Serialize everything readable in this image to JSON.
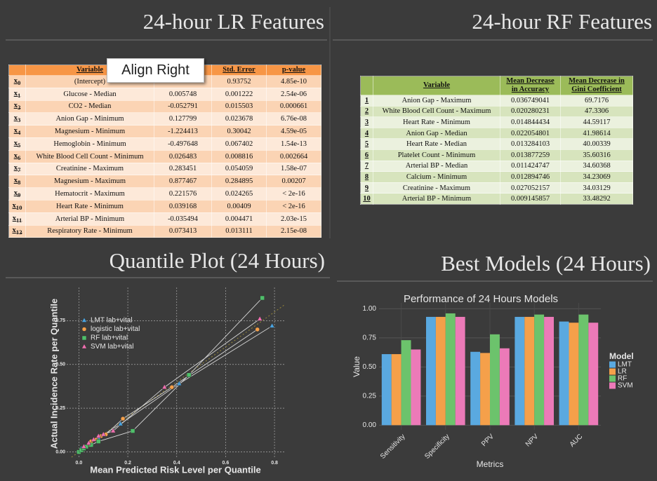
{
  "slide": {
    "titles": {
      "lr": "24-hour LR Features",
      "rf": "24-hour RF Features",
      "quantile": "Quantile Plot (24 Hours)",
      "best": "Best Models (24 Hours)"
    },
    "tooltip": "Align Right"
  },
  "lr_table": {
    "symbol": "x",
    "columns": {
      "variable": "Variable",
      "std_error": "Std. Error",
      "p_value": "p-value"
    },
    "rows": [
      {
        "sub": "0",
        "variable": "(Intercept)",
        "estimate": null,
        "std_error": "0.93752",
        "p_value": "4.85e-10"
      },
      {
        "sub": "1",
        "variable": "Glucose - Median",
        "estimate": "0.005748",
        "std_error": "0.001222",
        "p_value": "2.54e-06"
      },
      {
        "sub": "2",
        "variable": "CO2 - Median",
        "estimate": "-0.052791",
        "std_error": "0.015503",
        "p_value": "0.000661"
      },
      {
        "sub": "3",
        "variable": "Anion Gap - Minimum",
        "estimate": "0.127799",
        "std_error": "0.023678",
        "p_value": "6.76e-08"
      },
      {
        "sub": "4",
        "variable": "Magnesium - Minimum",
        "estimate": "-1.224413",
        "std_error": "0.30042",
        "p_value": "4.59e-05"
      },
      {
        "sub": "5",
        "variable": "Hemoglobin - Minimum",
        "estimate": "-0.497648",
        "std_error": "0.067402",
        "p_value": "1.54e-13"
      },
      {
        "sub": "6",
        "variable": "White Blood Cell Count - Minimum",
        "estimate": "0.026483",
        "std_error": "0.008816",
        "p_value": "0.002664"
      },
      {
        "sub": "7",
        "variable": "Creatinine - Maximum",
        "estimate": "0.283451",
        "std_error": "0.054059",
        "p_value": "1.58e-07"
      },
      {
        "sub": "8",
        "variable": "Magnesium - Maximum",
        "estimate": "0.877467",
        "std_error": "0.284895",
        "p_value": "0.00207"
      },
      {
        "sub": "9",
        "variable": "Hematocrit - Maximum",
        "estimate": "0.221576",
        "std_error": "0.024265",
        "p_value": "< 2e-16"
      },
      {
        "sub": "10",
        "variable": "Heart Rate - Minimum",
        "estimate": "0.039168",
        "std_error": "0.00409",
        "p_value": "< 2e-16"
      },
      {
        "sub": "11",
        "variable": "Arterial BP - Minimum",
        "estimate": "-0.035494",
        "std_error": "0.004471",
        "p_value": "2.03e-15"
      },
      {
        "sub": "12",
        "variable": "Respiratory Rate - Minimum",
        "estimate": "0.073413",
        "std_error": "0.013111",
        "p_value": "2.15e-08"
      }
    ]
  },
  "rf_table": {
    "columns": {
      "variable": "Variable",
      "accuracy": "Mean Decrease in Accuracy",
      "gini": "Mean Decrease in Gini Coefficient"
    },
    "rows": [
      {
        "rank": "1",
        "variable": "Anion Gap - Maximum",
        "accuracy": "0.036749041",
        "gini": "69.7176"
      },
      {
        "rank": "2",
        "variable": "White Blood Cell Count - Maximum",
        "accuracy": "0.020280231",
        "gini": "47.3306"
      },
      {
        "rank": "3",
        "variable": "Heart Rate - Minimum",
        "accuracy": "0.014844434",
        "gini": "44.59117"
      },
      {
        "rank": "4",
        "variable": "Anion Gap - Median",
        "accuracy": "0.022054801",
        "gini": "41.98614"
      },
      {
        "rank": "5",
        "variable": "Heart Rate - Median",
        "accuracy": "0.013284103",
        "gini": "40.00339"
      },
      {
        "rank": "6",
        "variable": "Platelet Count - Minimum",
        "accuracy": "0.013877259",
        "gini": "35.60316"
      },
      {
        "rank": "7",
        "variable": "Arterial BP - Median",
        "accuracy": "0.011424747",
        "gini": "34.60368"
      },
      {
        "rank": "8",
        "variable": "Calcium - Minimum",
        "accuracy": "0.012894746",
        "gini": "34.23069"
      },
      {
        "rank": "9",
        "variable": "Creatinine - Maximum",
        "accuracy": "0.027052157",
        "gini": "34.03129"
      },
      {
        "rank": "10",
        "variable": "Arterial BP - Minimum",
        "accuracy": "0.009145857",
        "gini": "33.48292"
      }
    ]
  },
  "chart_data": [
    {
      "type": "scatter",
      "x_label": "Mean Predicted Risk Level per Quantile",
      "y_label": "Actual Incidence Rate per Quantile",
      "xlim": [
        -0.05,
        0.84
      ],
      "ylim": [
        -0.03,
        0.94
      ],
      "xticks": [
        {
          "value": 0,
          "label": "0.0"
        },
        0.2,
        0.4,
        0.6,
        0.8
      ],
      "yticks": [
        {
          "value": 0,
          "label": "0.00"
        },
        0.25,
        {
          "value": 0.5,
          "label": "0.50"
        },
        0.75
      ],
      "grid": true,
      "legend": "upper left",
      "series": [
        {
          "name": "LMT lab+vital",
          "color": "#4aa3df",
          "marker": "triangle",
          "x": [
            0.01,
            0.02,
            0.04,
            0.06,
            0.08,
            0.17,
            0.41,
            0.79
          ],
          "values": [
            0.02,
            0.03,
            0.05,
            0.07,
            0.08,
            0.16,
            0.39,
            0.72
          ]
        },
        {
          "name": "logistic lab+vital",
          "color": "#f5a04a",
          "marker": "circle",
          "x": [
            0.01,
            0.02,
            0.04,
            0.05,
            0.07,
            0.09,
            0.11,
            0.18,
            0.38,
            0.73
          ],
          "values": [
            0.01,
            0.02,
            0.04,
            0.06,
            0.07,
            0.09,
            0.1,
            0.19,
            0.37,
            0.7
          ]
        },
        {
          "name": "RF lab+vital",
          "color": "#4fbf6a",
          "marker": "square",
          "x": [
            0,
            0.01,
            0.02,
            0.03,
            0.05,
            0.08,
            0.22,
            0.45,
            0.75
          ],
          "values": [
            0,
            0.01,
            0.02,
            0.03,
            0.04,
            0.06,
            0.12,
            0.44,
            0.88
          ]
        },
        {
          "name": "SVM lab+vital",
          "color": "#f06fb0",
          "marker": "triangle",
          "x": [
            0.02,
            0.04,
            0.06,
            0.08,
            0.1,
            0.14,
            0.35,
            0.74
          ],
          "values": [
            0.03,
            0.05,
            0.07,
            0.09,
            0.1,
            0.12,
            0.37,
            0.76
          ]
        }
      ]
    },
    {
      "type": "bar",
      "title": "Performance of 24 Hours Models",
      "x_label": "Metrics",
      "y_label": "Value",
      "legend_title": "Model",
      "legend": "right",
      "categories": [
        "Sensitivity",
        "Specificity",
        "PPV",
        "NPV",
        "AUC"
      ],
      "ylim": [
        -0.04,
        1.05
      ],
      "yticks": [
        {
          "value": 0,
          "label": "0.00"
        },
        0.25,
        {
          "value": 0.5,
          "label": "0.50"
        },
        0.75,
        {
          "value": 1,
          "label": "1.00"
        }
      ],
      "grid": true,
      "series": [
        {
          "name": "LMT",
          "color": "#5aa9e0",
          "values": [
            0.61,
            0.93,
            0.63,
            0.93,
            0.89
          ]
        },
        {
          "name": "LR",
          "color": "#f5a04a",
          "values": [
            0.61,
            0.93,
            0.62,
            0.93,
            0.88
          ]
        },
        {
          "name": "RF",
          "color": "#6cc36c",
          "values": [
            0.73,
            0.96,
            0.78,
            0.95,
            0.95
          ]
        },
        {
          "name": "SVM",
          "color": "#ec7ab8",
          "values": [
            0.65,
            0.93,
            0.66,
            0.93,
            0.88
          ]
        }
      ]
    }
  ]
}
